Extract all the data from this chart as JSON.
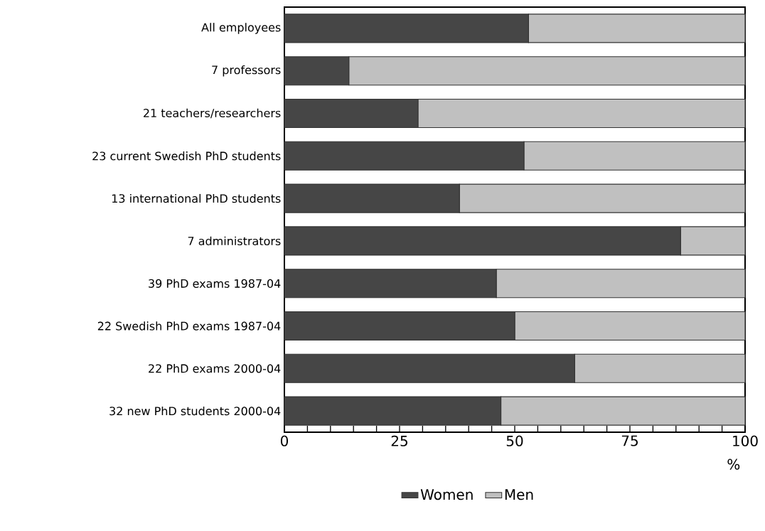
{
  "chart_data": {
    "type": "bar",
    "orientation": "horizontal",
    "stacked": true,
    "categories": [
      "All employees",
      "7 professors",
      "21 teachers/researchers",
      "23 current Swedish PhD students",
      "13 international PhD students",
      "7 administrators",
      "39 PhD exams 1987-04",
      "22 Swedish PhD exams 1987-04",
      "22 PhD exams 2000-04",
      "32 new PhD students 2000-04"
    ],
    "series": [
      {
        "name": "Women",
        "color": "#464646",
        "values": [
          53,
          14,
          29,
          52,
          38,
          86,
          46,
          50,
          63,
          47
        ]
      },
      {
        "name": "Men",
        "color": "#c0c0c0",
        "values": [
          47,
          86,
          71,
          48,
          62,
          14,
          54,
          50,
          37,
          53
        ]
      }
    ],
    "xlabel": "%",
    "xlim": [
      0,
      100
    ],
    "xticks": [
      0,
      {
        "value": 5,
        "label": null
      },
      {
        "value": 10,
        "label": null
      },
      {
        "value": 15,
        "label": null
      },
      {
        "value": 20,
        "label": null
      },
      25,
      {
        "value": 30,
        "label": null
      },
      {
        "value": 35,
        "label": null
      },
      {
        "value": 40,
        "label": null
      },
      {
        "value": 45,
        "label": null
      },
      50,
      {
        "value": 55,
        "label": null
      },
      {
        "value": 60,
        "label": null
      },
      {
        "value": 65,
        "label": null
      },
      {
        "value": 70,
        "label": null
      },
      75,
      {
        "value": 80,
        "label": null
      },
      {
        "value": 85,
        "label": null
      },
      {
        "value": 90,
        "label": null
      },
      {
        "value": 95,
        "label": null
      },
      100
    ],
    "legend": "bottom",
    "grid": false
  }
}
